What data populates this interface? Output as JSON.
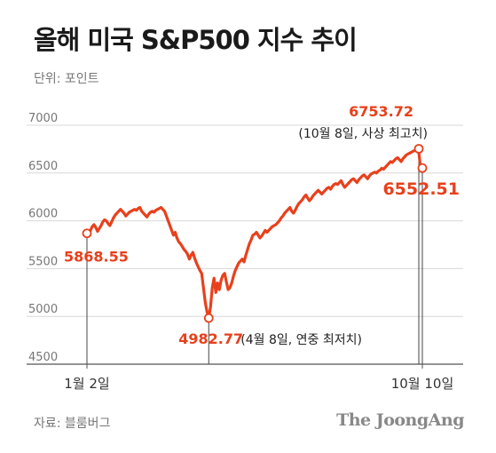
{
  "title": "올해 미국 S&P500 지수 추이",
  "unit_label": "단위: 포인트",
  "source_label": "자료: 블룸버그",
  "brand": "The JoongAng",
  "colors": {
    "line": "#e8401c",
    "grid": "#d8d8d8",
    "axis": "#555555"
  },
  "chart_data": {
    "type": "line",
    "title": "올해 미국 S&P500 지수 추이",
    "ylabel": "단위: 포인트",
    "ylim": [
      4500,
      7000
    ],
    "yticks": [
      4500,
      5000,
      5500,
      6000,
      6500,
      7000
    ],
    "grid": true,
    "x_tick_labels": [
      {
        "label": "1월 2일",
        "index": 0
      },
      {
        "label": "10월 10일",
        "index": 190
      }
    ],
    "series": [
      {
        "values": [
          5868.55,
          5870,
          5900,
          5940,
          5960,
          5930,
          5890,
          5920,
          5950,
          5990,
          6010,
          6000,
          5970,
          5950,
          5990,
          6030,
          6060,
          6080,
          6100,
          6120,
          6100,
          6080,
          6050,
          6070,
          6090,
          6100,
          6110,
          6120,
          6110,
          6130,
          6140,
          6100,
          6080,
          6060,
          6040,
          6070,
          6090,
          6100,
          6090,
          6110,
          6120,
          6130,
          6140,
          6120,
          6100,
          6050,
          6000,
          5950,
          5900,
          5850,
          5880,
          5820,
          5780,
          5760,
          5730,
          5700,
          5680,
          5650,
          5600,
          5640,
          5670,
          5610,
          5560,
          5520,
          5480,
          5450,
          5300,
          5150,
          5050,
          4982.77,
          5100,
          5300,
          5400,
          5250,
          5350,
          5280,
          5380,
          5430,
          5450,
          5360,
          5280,
          5300,
          5350,
          5420,
          5480,
          5520,
          5560,
          5580,
          5600,
          5570,
          5640,
          5700,
          5760,
          5800,
          5850,
          5860,
          5880,
          5850,
          5820,
          5840,
          5870,
          5900,
          5880,
          5900,
          5920,
          5940,
          5950,
          5960,
          5980,
          6000,
          6030,
          6050,
          6080,
          6100,
          6120,
          6140,
          6100,
          6080,
          6110,
          6150,
          6180,
          6200,
          6220,
          6250,
          6270,
          6240,
          6210,
          6230,
          6260,
          6280,
          6300,
          6320,
          6300,
          6280,
          6300,
          6320,
          6340,
          6350,
          6330,
          6360,
          6380,
          6390,
          6380,
          6400,
          6420,
          6380,
          6350,
          6370,
          6390,
          6410,
          6430,
          6440,
          6420,
          6400,
          6430,
          6450,
          6470,
          6480,
          6460,
          6440,
          6470,
          6490,
          6500,
          6510,
          6500,
          6520,
          6530,
          6550,
          6540,
          6560,
          6580,
          6600,
          6620,
          6610,
          6630,
          6650,
          6660,
          6640,
          6620,
          6650,
          6670,
          6690,
          6700,
          6710,
          6720,
          6730,
          6740,
          6753.72,
          6720,
          6552.51
        ]
      }
    ],
    "annotations": [
      {
        "index": 0,
        "value": 5868.55,
        "label": "5868.55"
      },
      {
        "index": 69,
        "value": 4982.77,
        "label": "4982.77",
        "note": "(4월 8일, 연중 최저치)"
      },
      {
        "index": 188,
        "value": 6753.72,
        "label": "6753.72",
        "note": "(10월 8일, 사상 최고치)"
      },
      {
        "index": 190,
        "value": 6552.51,
        "label": "6552.51"
      }
    ]
  }
}
